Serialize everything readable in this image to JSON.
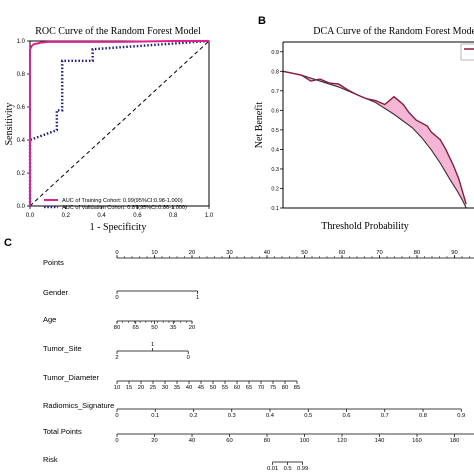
{
  "chart_data": [
    {
      "type": "line",
      "panel_label": "",
      "title": "ROC Curve of the Random Forest Model",
      "xlabel": "1 - Specificity",
      "ylabel": "Sensitivity",
      "xlim": [
        0,
        1
      ],
      "ylim": [
        0,
        1
      ],
      "x_ticks": [
        "0.0",
        "0.2",
        "0.4",
        "0.6",
        "0.8",
        "1.0"
      ],
      "y_ticks": [
        "0.0",
        "0.2",
        "0.4",
        "0.6",
        "0.8",
        "1.0"
      ],
      "legend_position": "bottom-right",
      "grid": false,
      "series": [
        {
          "name": "AUC of Training Cohort: 0.99(95%CI:0.98-1.000)",
          "color": "#e0208f",
          "style": "solid",
          "x": [
            0.0,
            0.0,
            0.01,
            0.02,
            0.04,
            0.06,
            0.1,
            0.2,
            0.5,
            0.8,
            1.0
          ],
          "y": [
            0.0,
            0.95,
            0.97,
            0.98,
            0.985,
            0.99,
            0.995,
            0.995,
            0.995,
            1.0,
            1.0
          ]
        },
        {
          "name": "AUC of Validation Cohort: 0.87(95%CI:0.86-1.000)",
          "color": "#1a1a7a",
          "style": "dotted",
          "x": [
            0.0,
            0.0,
            0.15,
            0.15,
            0.18,
            0.18,
            0.35,
            0.35,
            1.0
          ],
          "y": [
            0.0,
            0.4,
            0.46,
            0.58,
            0.58,
            0.88,
            0.88,
            0.95,
            1.0
          ]
        },
        {
          "name": "",
          "color": "#000000",
          "style": "dashed",
          "x": [
            0,
            1
          ],
          "y": [
            0,
            1
          ]
        }
      ]
    },
    {
      "type": "line",
      "panel_label": "B",
      "title": "DCA Curve of the Random Forest Model",
      "xlabel": "Threshold Probability",
      "ylabel": "Net Benefit",
      "xlim": [
        0,
        1
      ],
      "ylim": [
        0.1,
        0.95
      ],
      "x_ticks": [],
      "y_ticks": [
        "0.1",
        "0.2",
        "0.3",
        "0.4",
        "0.5",
        "0.6",
        "0.7",
        "0.8",
        "0.9"
      ],
      "legend_position": "top-right",
      "grid": false,
      "series": [
        {
          "name": "",
          "color": "#8b1a3a",
          "style": "solid",
          "x": [
            0.0,
            0.05,
            0.1,
            0.15,
            0.2,
            0.25,
            0.3,
            0.35,
            0.4,
            0.45,
            0.5,
            0.55,
            0.6,
            0.65,
            0.68,
            0.72,
            0.78,
            0.8,
            0.85,
            0.88,
            0.92,
            0.95,
            0.99
          ],
          "y": [
            0.8,
            0.79,
            0.78,
            0.75,
            0.76,
            0.74,
            0.735,
            0.705,
            0.68,
            0.66,
            0.65,
            0.63,
            0.67,
            0.63,
            0.59,
            0.55,
            0.52,
            0.49,
            0.45,
            0.4,
            0.32,
            0.25,
            0.12
          ]
        },
        {
          "name": "",
          "color": "#333333",
          "style": "solid",
          "x": [
            0.0,
            0.1,
            0.2,
            0.3,
            0.4,
            0.5,
            0.6,
            0.7,
            0.75,
            0.8,
            0.85,
            0.9,
            0.94,
            0.97,
            0.99
          ],
          "y": [
            0.8,
            0.78,
            0.75,
            0.72,
            0.68,
            0.64,
            0.58,
            0.51,
            0.46,
            0.4,
            0.33,
            0.25,
            0.19,
            0.14,
            0.1
          ]
        }
      ],
      "fill_between_color": "#f4b6d4"
    },
    {
      "type": "nomogram",
      "panel_label": "C",
      "rows": [
        {
          "label": "Points",
          "min": 0,
          "max": 100,
          "ticks": [
            "0",
            "10",
            "20",
            "30",
            "40",
            "50",
            "60",
            "70",
            "80",
            "90"
          ],
          "tick_values": [
            0,
            10,
            20,
            30,
            40,
            50,
            60,
            70,
            80,
            90
          ],
          "minor_step": 2
        },
        {
          "label": "Gender",
          "ticks": [
            "0",
            "1"
          ],
          "tick_points": [
            0,
            21.5
          ]
        },
        {
          "label": "Age",
          "ticks": [
            "80",
            "65",
            "50",
            "35",
            "20"
          ],
          "tick_points": [
            0,
            5,
            10,
            15,
            20
          ],
          "minor_ticks": 13
        },
        {
          "label": "Tumor_Site",
          "ticks": [
            "2",
            "1",
            "0"
          ],
          "tick_points": [
            0,
            9.5,
            19
          ]
        },
        {
          "label": "Tumor_Diameter",
          "ticks": [
            "10",
            "15",
            "20",
            "25",
            "30",
            "35",
            "40",
            "45",
            "50",
            "55",
            "60",
            "65",
            "70",
            "75",
            "80",
            "85"
          ],
          "tick_points": [
            0,
            3.2,
            6.4,
            9.6,
            12.8,
            16,
            19.2,
            22.4,
            25.6,
            28.8,
            32,
            35.2,
            38.4,
            41.6,
            44.8,
            48
          ]
        },
        {
          "label": "Radiomics_Signature",
          "ticks": [
            "0",
            "0.1",
            "0.2",
            "0.3",
            "0.4",
            "0.5",
            "0.6",
            "0.7",
            "0.8",
            "0.9"
          ],
          "tick_points": [
            0,
            10.2,
            20.4,
            30.6,
            40.8,
            51,
            61.2,
            71.4,
            81.6,
            91.8
          ]
        },
        {
          "label": "Total Points",
          "ticks": [
            "0",
            "20",
            "40",
            "60",
            "80",
            "100",
            "120",
            "140",
            "160",
            "180"
          ],
          "tick_points": [
            0,
            10,
            20,
            30,
            40,
            50,
            60,
            70,
            80,
            90
          ]
        },
        {
          "label": "Risk",
          "ticks": [
            "0.01",
            "0.5",
            "0.99"
          ],
          "tick_points": [
            41.5,
            45.5,
            49.5
          ]
        }
      ]
    }
  ]
}
